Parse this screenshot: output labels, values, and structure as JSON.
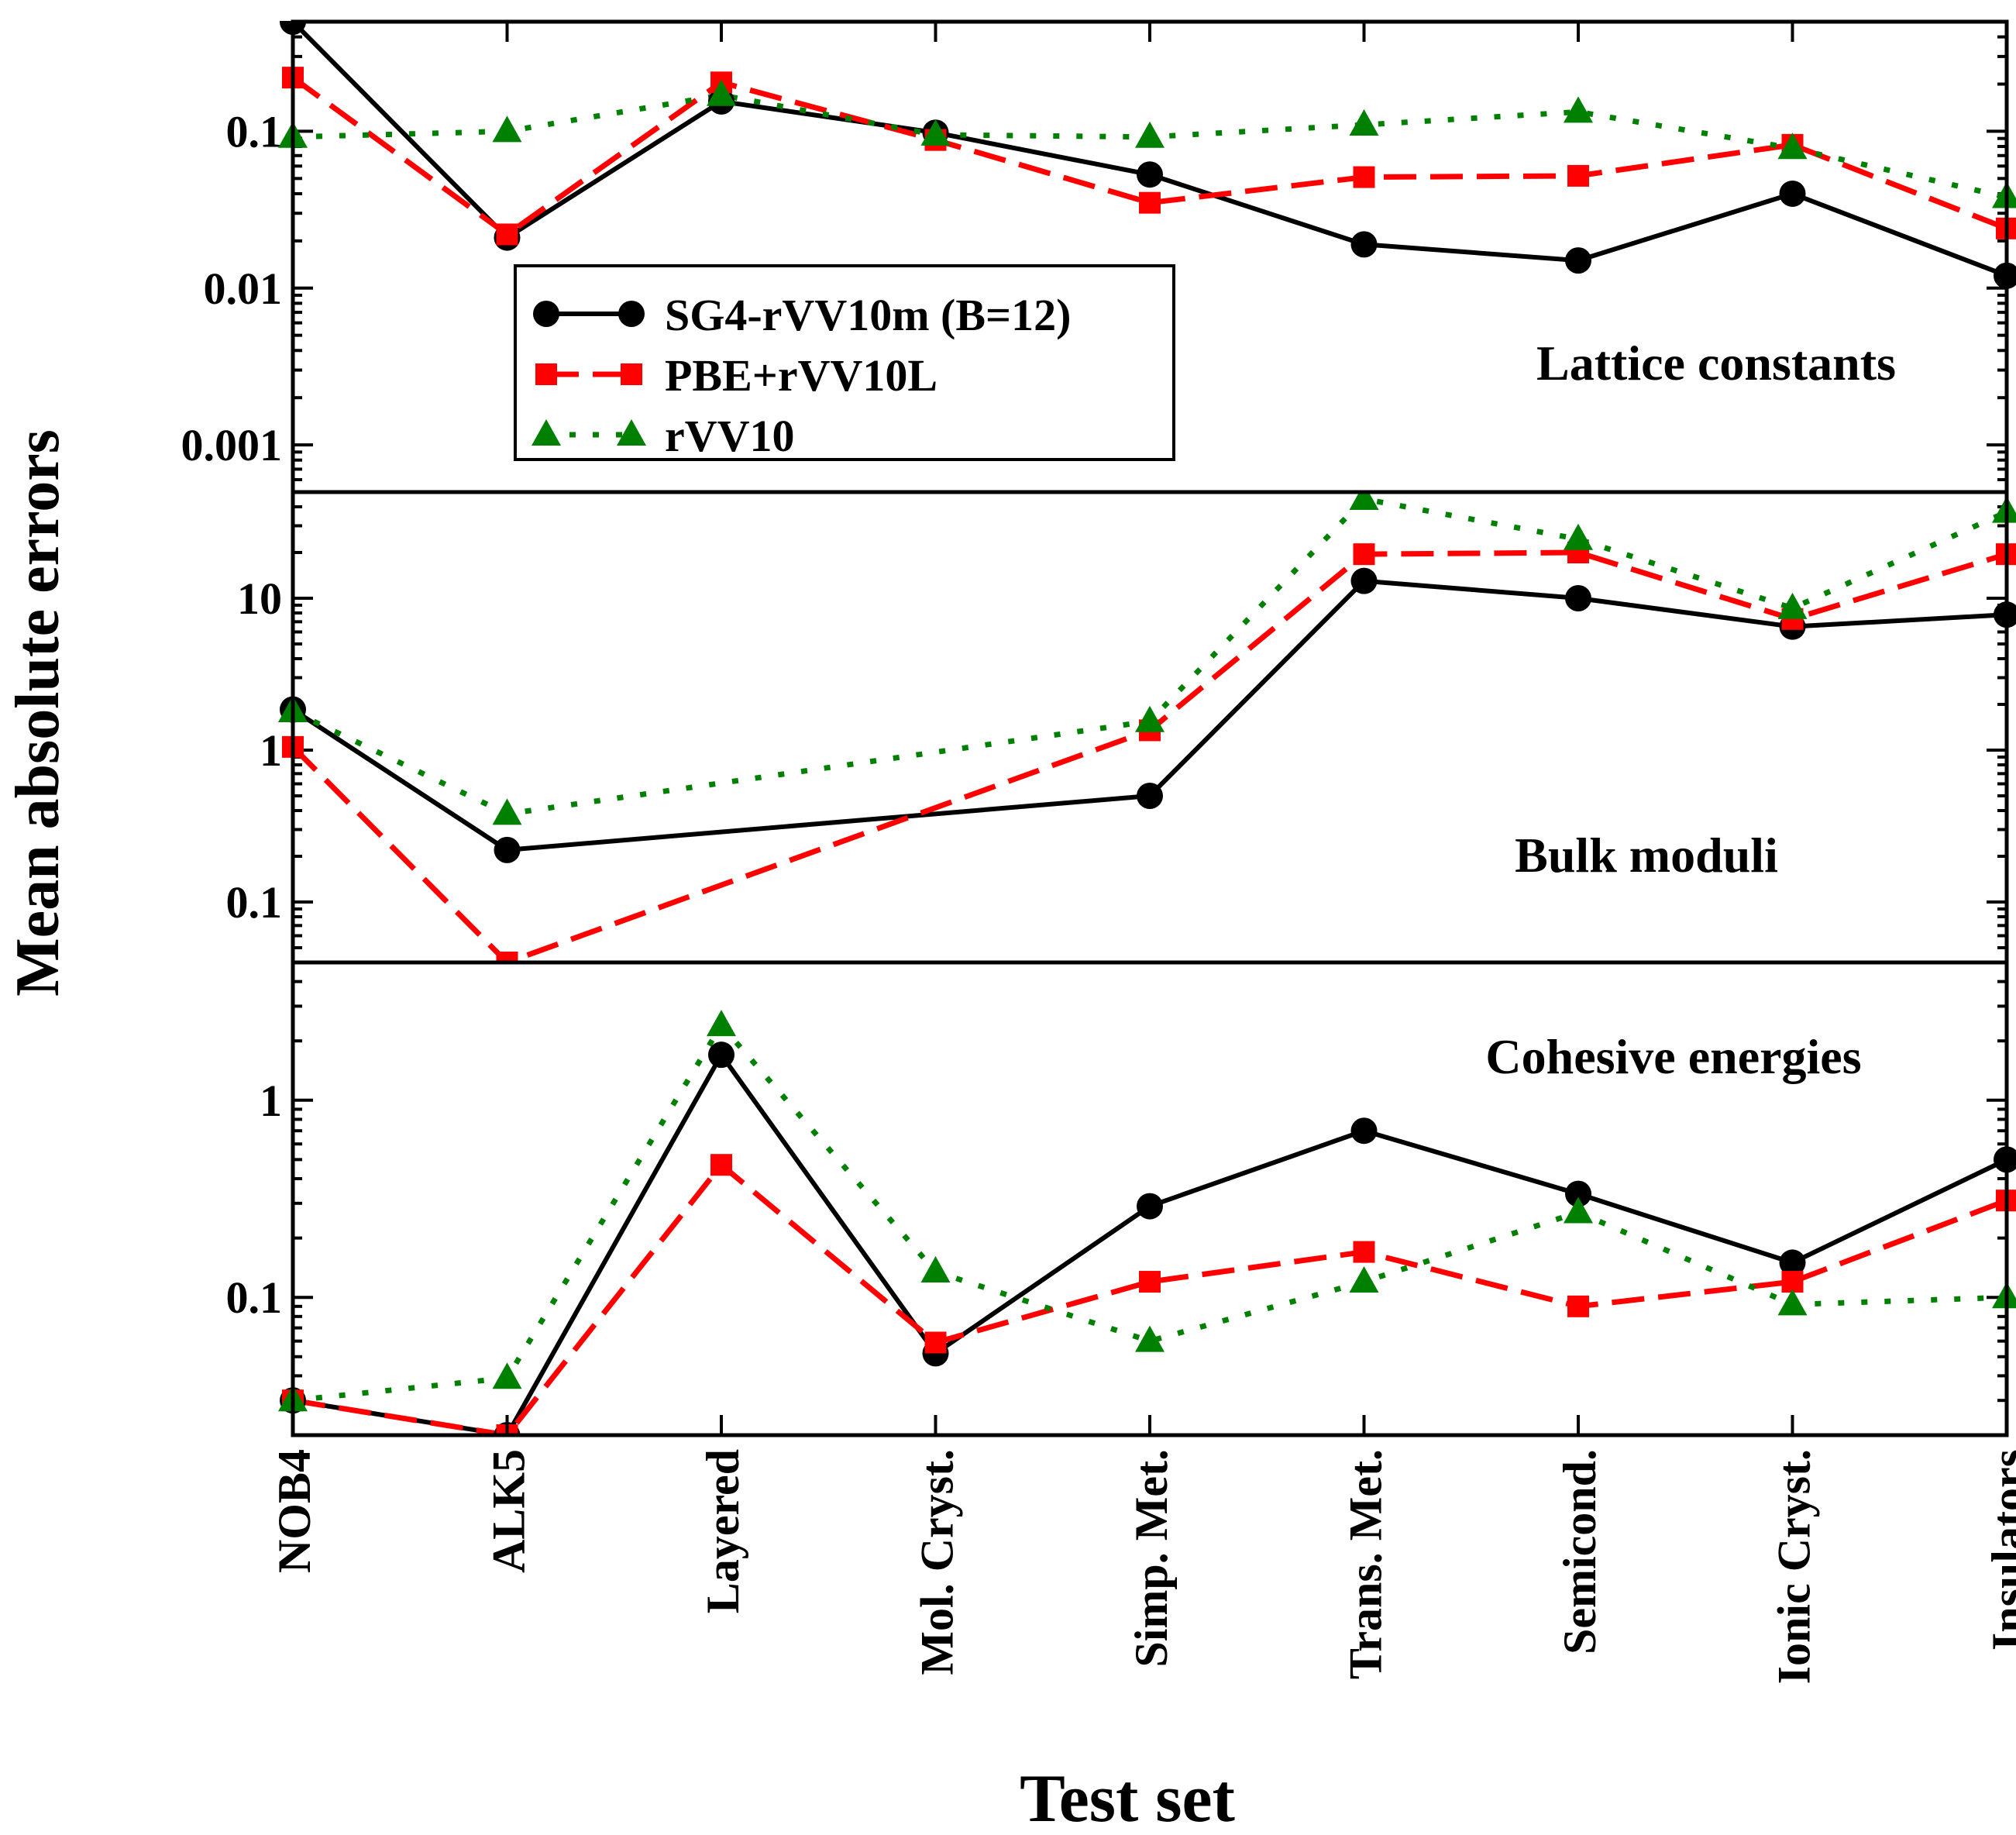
{
  "chart_data": {
    "type": "line",
    "xlabel": "Test set",
    "ylabel": "Mean absolute errors",
    "categories": [
      "NOB4",
      "ALK5",
      "Layered",
      "Mol. Cryst.",
      "Simp. Met.",
      "Trans. Met.",
      "Semicond.",
      "Ionic Cryst.",
      "Insulators"
    ],
    "legend": {
      "placement": "top-left inside top panel",
      "entries": [
        {
          "name": "SG4-rVV10m (B=12)",
          "color": "#000000",
          "marker": "circle",
          "dash": "solid"
        },
        {
          "name": "PBE+rVV10L",
          "color": "#ff0000",
          "marker": "square",
          "dash": "dashed"
        },
        {
          "name": "rVV10",
          "color": "#008000",
          "marker": "triangle",
          "dash": "dotted"
        }
      ]
    },
    "panels": [
      {
        "label": "Lattice constants",
        "scale": "log",
        "ylim": [
          0.0005,
          0.5
        ],
        "yticks": [
          0.001,
          0.01,
          0.1
        ],
        "ytick_labels": [
          "0.001",
          "0.01",
          "0.1"
        ],
        "series": [
          {
            "name": "SG4-rVV10m (B=12)",
            "values": [
              0.5,
              0.021,
              0.155,
              0.098,
              0.053,
              0.019,
              0.015,
              0.04,
              0.012
            ]
          },
          {
            "name": "PBE+rVV10L",
            "values": [
              0.22,
              0.022,
              0.205,
              0.088,
              0.035,
              0.051,
              0.052,
              0.082,
              0.024
            ]
          },
          {
            "name": "rVV10",
            "values": [
              0.092,
              0.1,
              0.17,
              0.095,
              0.092,
              0.11,
              0.133,
              0.078,
              0.038
            ]
          }
        ]
      },
      {
        "label": "Bulk moduli",
        "scale": "log",
        "ylim": [
          0.04,
          50
        ],
        "yticks": [
          0.1,
          1,
          10
        ],
        "ytick_labels": [
          "0.1",
          "1",
          "10"
        ],
        "series": [
          {
            "name": "SG4-rVV10m (B=12)",
            "values": [
              1.85,
              0.22,
              null,
              null,
              0.5,
              13,
              10,
              6.5,
              7.8
            ]
          },
          {
            "name": "PBE+rVV10L",
            "values": [
              1.05,
              0.04,
              null,
              null,
              1.35,
              19.5,
              20,
              7.3,
              19.5
            ]
          },
          {
            "name": "rVV10",
            "values": [
              1.8,
              0.38,
              null,
              null,
              1.55,
              45,
              24.5,
              8.6,
              37
            ]
          }
        ]
      },
      {
        "label": "Cohesive energies",
        "scale": "log",
        "ylim": [
          0.02,
          5
        ],
        "yticks": [
          0.1,
          1
        ],
        "ytick_labels": [
          "0.1",
          "1"
        ],
        "series": [
          {
            "name": "SG4-rVV10m (B=12)",
            "values": [
              0.03,
              0.02,
              1.7,
              0.052,
              0.29,
              0.7,
              0.335,
              0.15,
              0.5
            ]
          },
          {
            "name": "PBE+rVV10L",
            "values": [
              0.03,
              0.02,
              0.47,
              0.059,
              0.12,
              0.17,
              0.09,
              0.12,
              0.31
            ]
          },
          {
            "name": "rVV10",
            "values": [
              0.03,
              0.039,
              2.4,
              0.135,
              0.06,
              0.12,
              0.27,
              0.092,
              0.1
            ]
          }
        ]
      }
    ]
  }
}
